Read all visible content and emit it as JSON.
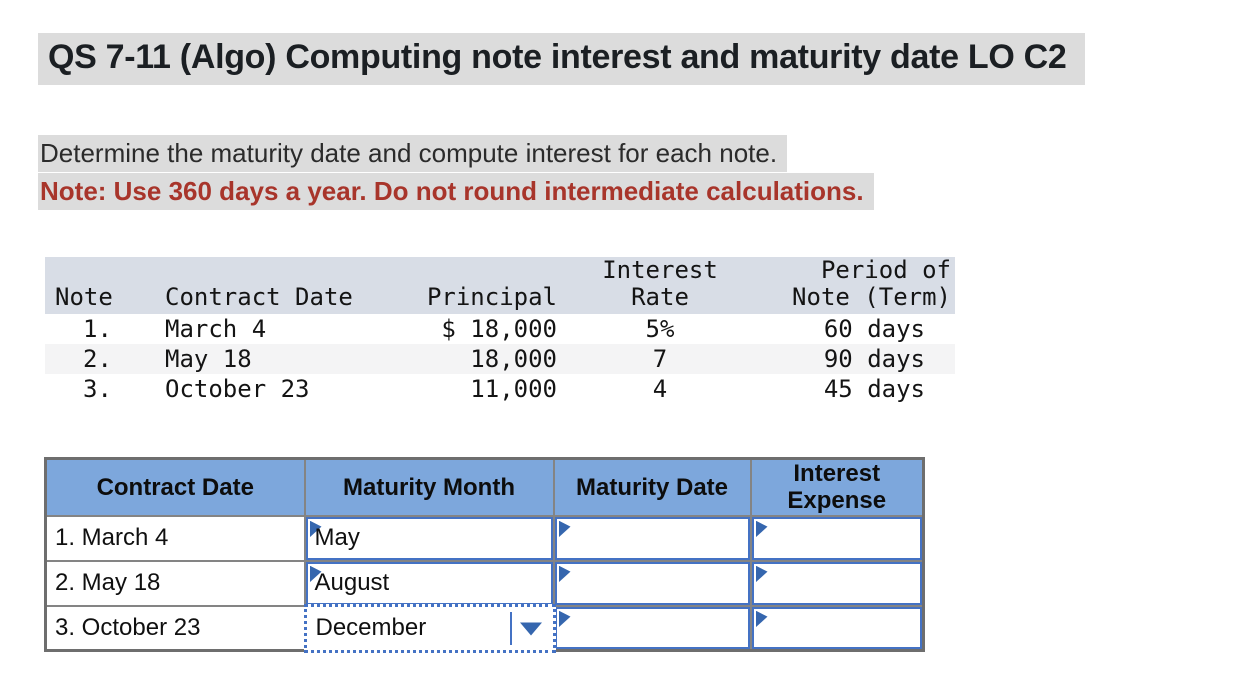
{
  "title": "QS 7-11 (Algo) Computing note interest and maturity date LO C2",
  "instructions": {
    "line1": "Determine the maturity date and compute interest for each note.",
    "line2": "Note: Use 360 days a year. Do not round intermediate calculations."
  },
  "notes_table": {
    "headers": {
      "note": "Note",
      "contract_date": "Contract Date",
      "principal": "Principal",
      "interest_rate": "Interest\nRate",
      "period": "Period of\nNote (Term)"
    },
    "rows": [
      {
        "note": "1.",
        "contract_date": "March 4",
        "principal": "$ 18,000",
        "interest_rate": "5%",
        "period": "60 days"
      },
      {
        "note": "2.",
        "contract_date": "May 18",
        "principal": "18,000",
        "interest_rate": "7",
        "period": "90 days"
      },
      {
        "note": "3.",
        "contract_date": "October 23",
        "principal": "11,000",
        "interest_rate": "4",
        "period": "45 days"
      }
    ]
  },
  "answer_table": {
    "headers": {
      "contract_date": "Contract Date",
      "maturity_month": "Maturity Month",
      "maturity_date": "Maturity Date",
      "interest_expense": "Interest\nExpense"
    },
    "rows": [
      {
        "contract_date": "1. March 4",
        "maturity_month": "May",
        "maturity_date": "",
        "interest_expense": ""
      },
      {
        "contract_date": "2. May 18",
        "maturity_month": "August",
        "maturity_date": "",
        "interest_expense": ""
      },
      {
        "contract_date": "3. October 23",
        "maturity_month": "December",
        "maturity_date": "",
        "interest_expense": ""
      }
    ],
    "dropdown": {
      "selected_value": "December",
      "state": "open-focus"
    }
  },
  "colors": {
    "highlight_gray": "#DCDCDC",
    "note_red": "#A8352B",
    "notes_header_bg": "#D8DDE6",
    "notes_stripe": "#F4F4F5",
    "header_blue": "#7DA7DC",
    "cell_border_blue": "#4472C4",
    "marker_blue": "#3566AE",
    "grid_gray": "#848484"
  }
}
